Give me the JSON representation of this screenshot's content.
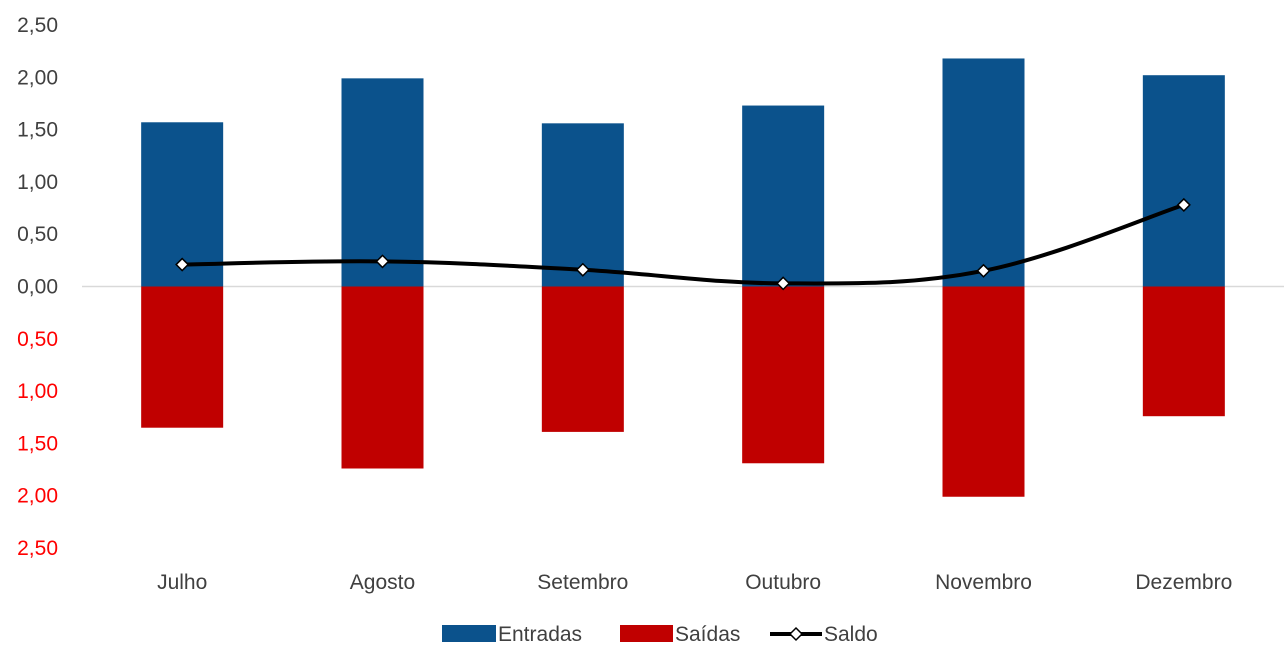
{
  "chart_data": {
    "type": "bar",
    "categories": [
      "Julho",
      "Agosto",
      "Setembro",
      "Outubro",
      "Novembro",
      "Dezembro"
    ],
    "series": [
      {
        "name": "Entradas",
        "type": "bar",
        "color": "#0B528C",
        "values": [
          1.57,
          1.99,
          1.56,
          1.73,
          2.18,
          2.02
        ]
      },
      {
        "name": "Saídas",
        "type": "bar",
        "color": "#C00000",
        "values": [
          -1.35,
          -1.74,
          -1.39,
          -1.69,
          -2.01,
          -1.24
        ]
      },
      {
        "name": "Saldo",
        "type": "line",
        "color": "#000000",
        "values": [
          0.21,
          0.24,
          0.16,
          0.03,
          0.15,
          0.78
        ]
      }
    ],
    "ylim": [
      -2.5,
      2.5
    ],
    "y_ticks": [
      {
        "value": 2.5,
        "label": "2,50"
      },
      {
        "value": 2.0,
        "label": "2,00"
      },
      {
        "value": 1.5,
        "label": "1,50"
      },
      {
        "value": 1.0,
        "label": "1,00"
      },
      {
        "value": 0.5,
        "label": "0,50"
      },
      {
        "value": 0.0,
        "label": "0,00"
      },
      {
        "value": -0.5,
        "label": "0,50"
      },
      {
        "value": -1.0,
        "label": "1,00"
      },
      {
        "value": -1.5,
        "label": "1,50"
      },
      {
        "value": -2.0,
        "label": "2,00"
      },
      {
        "value": -2.5,
        "label": "2,50"
      }
    ],
    "positive_tick_color": "#404040",
    "negative_tick_color": "#FF0000",
    "zero_line_color": "#D9D9D9",
    "grid": false,
    "legend_position": "bottom",
    "title": "",
    "xlabel": "",
    "ylabel": ""
  }
}
